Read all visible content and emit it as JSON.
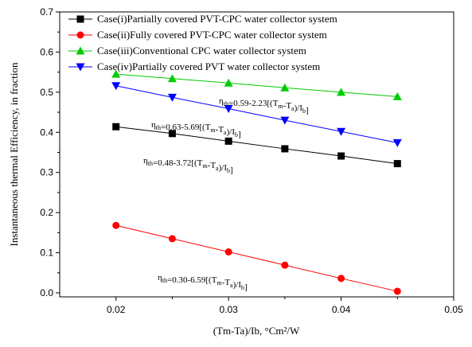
{
  "chart_data": {
    "type": "line",
    "xlabel": "(Tm-Ta)/Ib, °Cm²/W",
    "ylabel": "Instantaneous thermal Efficiency, in fraction",
    "xlim": [
      0.015,
      0.05
    ],
    "ylim": [
      -0.01,
      0.7
    ],
    "xticks": [
      0.02,
      0.03,
      0.04,
      0.05
    ],
    "yticks": [
      0.0,
      0.1,
      0.2,
      0.3,
      0.4,
      0.5,
      0.6,
      0.7
    ],
    "xtick_labels": [
      "0.02",
      "0.03",
      "0.04",
      "0.05"
    ],
    "ytick_labels": [
      "0.0",
      "0.1",
      "0.2",
      "0.3",
      "0.4",
      "0.5",
      "0.6",
      "0.7"
    ],
    "grid": false,
    "legend_position": "top-left",
    "x": [
      0.02,
      0.025,
      0.03,
      0.035,
      0.04,
      0.045
    ],
    "series": [
      {
        "name": "Case(i)Partially covered PVT-CPC water collector system",
        "marker": "square",
        "color": "#000000",
        "values": [
          0.414,
          0.397,
          0.378,
          0.359,
          0.341,
          0.322
        ]
      },
      {
        "name": "Case(ii)Fully covered PVT-CPC water collector system",
        "marker": "circle",
        "color": "#ff0000",
        "values": [
          0.168,
          0.135,
          0.102,
          0.069,
          0.036,
          0.004
        ]
      },
      {
        "name": "Case(iii)Conventional CPC water collector system",
        "marker": "triangle-up",
        "color": "#00cc00",
        "values": [
          0.545,
          0.534,
          0.523,
          0.511,
          0.5,
          0.489
        ]
      },
      {
        "name": "Case(iv)Partially covered PVT water collector system",
        "marker": "triangle-down",
        "color": "#0000ff",
        "values": [
          0.516,
          0.487,
          0.459,
          0.43,
          0.402,
          0.374
        ]
      }
    ],
    "annotations": [
      {
        "main": "η",
        "sub1": "th",
        "expr": "=0.59-2.23[(T",
        "sub2": "m",
        "mid": "-T",
        "sub3": "a",
        "end": ")/I",
        "sub4": "b",
        "close": "]"
      },
      {
        "main": "η",
        "sub1": "th",
        "expr": "=0.63-5.69[(T",
        "sub2": "m",
        "mid": "-T",
        "sub3": "a",
        "end": ")/I",
        "sub4": "b",
        "close": "]"
      },
      {
        "main": "η",
        "sub1": "th",
        "expr": "=0.48-3.72[(T",
        "sub2": "m",
        "mid": "-T",
        "sub3": "a",
        "end": ")/I",
        "sub4": "b",
        "close": "]"
      },
      {
        "main": "η",
        "sub1": "th",
        "expr": "=0.30-6.59[(T",
        "sub2": "m",
        "mid": "-T",
        "sub3": "a",
        "end": ")/I",
        "sub4": "b",
        "close": "]"
      }
    ]
  }
}
